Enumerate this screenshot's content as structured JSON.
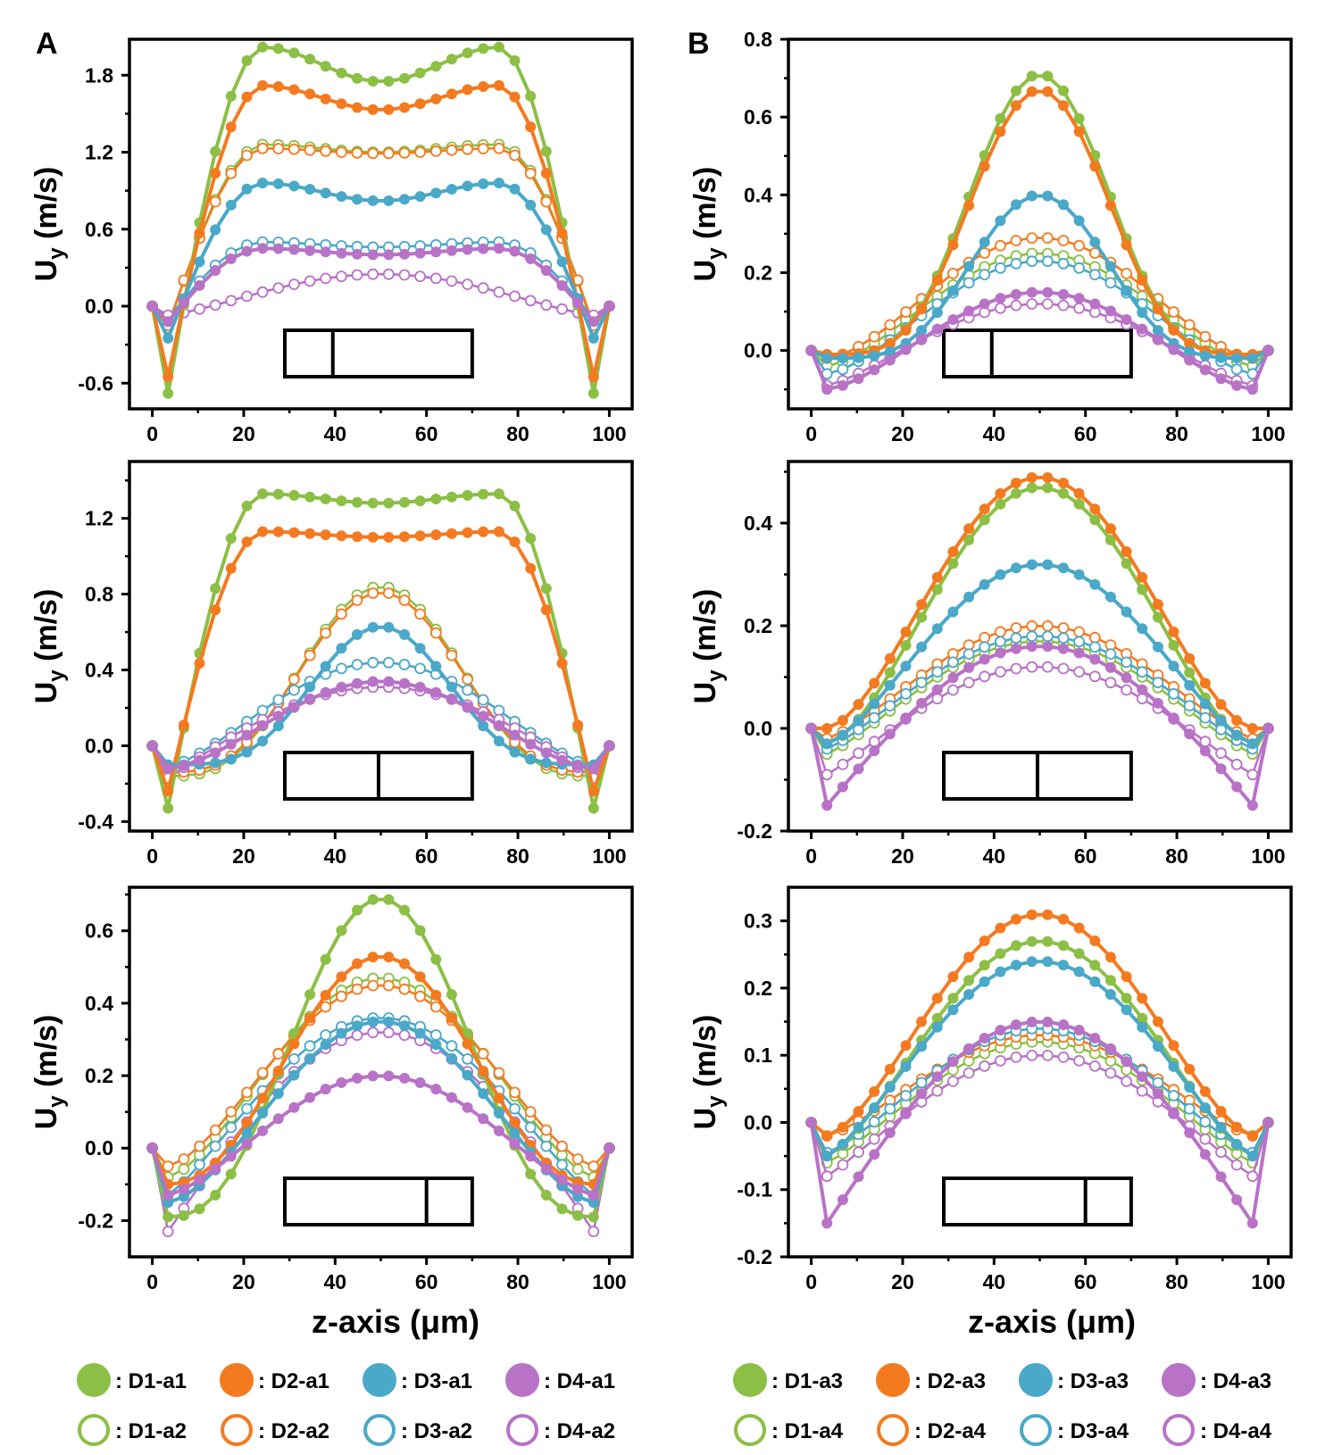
{
  "figure": {
    "panel_labels": [
      "A",
      "B"
    ],
    "xlabel": "z-axis (μm)",
    "ylabel_main": "U",
    "ylabel_sub": "y",
    "ylabel_unit": " (m/s)",
    "legend_sep": ": "
  },
  "colors": {
    "D1": "#8cbf45",
    "D2": "#f47a20",
    "D3": "#4aa8c8",
    "D4": "#b872c6"
  },
  "legends": {
    "A": [
      {
        "label": "D1-a1",
        "color": "#8cbf45",
        "filled": true
      },
      {
        "label": "D2-a1",
        "color": "#f47a20",
        "filled": true
      },
      {
        "label": "D3-a1",
        "color": "#4aa8c8",
        "filled": true
      },
      {
        "label": "D4-a1",
        "color": "#b872c6",
        "filled": true
      },
      {
        "label": "D1-a2",
        "color": "#8cbf45",
        "filled": false
      },
      {
        "label": "D2-a2",
        "color": "#f47a20",
        "filled": false
      },
      {
        "label": "D3-a2",
        "color": "#4aa8c8",
        "filled": false
      },
      {
        "label": "D4-a2",
        "color": "#b872c6",
        "filled": false
      }
    ],
    "B": [
      {
        "label": "D1-a3",
        "color": "#8cbf45",
        "filled": true
      },
      {
        "label": "D2-a3",
        "color": "#f47a20",
        "filled": true
      },
      {
        "label": "D3-a3",
        "color": "#4aa8c8",
        "filled": true
      },
      {
        "label": "D4-a3",
        "color": "#b872c6",
        "filled": true
      },
      {
        "label": "D1-a4",
        "color": "#8cbf45",
        "filled": false
      },
      {
        "label": "D2-a4",
        "color": "#f47a20",
        "filled": false
      },
      {
        "label": "D3-a4",
        "color": "#4aa8c8",
        "filled": false
      },
      {
        "label": "D4-a4",
        "color": "#b872c6",
        "filled": false
      }
    ]
  },
  "chart_data": [
    {
      "type": "line",
      "id": "A-top",
      "panel": "A",
      "column": "A",
      "row": 0,
      "xlabel": "",
      "ylabel": "Uy (m/s)",
      "xlim": [
        -5,
        105
      ],
      "ylim": [
        -0.8,
        2.08
      ],
      "xticks": [
        0,
        20,
        40,
        60,
        80,
        100
      ],
      "yticks": [
        -0.6,
        0.0,
        0.6,
        1.2,
        1.8
      ],
      "ytick_labels": [
        "-0.6",
        "0.0",
        "0.6",
        "1.2",
        "1.8"
      ],
      "inset_box": {
        "x_start": 29,
        "x_end": 70,
        "divider_x": 39.5
      },
      "series": [
        {
          "name": "D1-a1",
          "color": "#8cbf45",
          "filled": true,
          "edge": -0.68,
          "flat": false,
          "plateau": 1.75,
          "peak": 2.02
        },
        {
          "name": "D2-a1",
          "color": "#f47a20",
          "filled": true,
          "edge": -0.55,
          "flat": false,
          "plateau": 1.53,
          "peak": 1.72
        },
        {
          "name": "D3-a1",
          "color": "#4aa8c8",
          "filled": true,
          "edge": -0.25,
          "flat": false,
          "plateau": 0.82,
          "peak": 0.96
        },
        {
          "name": "D4-a1",
          "color": "#b872c6",
          "filled": true,
          "edge": -0.12,
          "flat": false,
          "plateau": 0.4,
          "peak": 0.45
        },
        {
          "name": "D1-a2",
          "color": "#8cbf45",
          "filled": false,
          "edge": -0.17,
          "flat": false,
          "plateau": 1.2,
          "peak": 1.26
        },
        {
          "name": "D2-a2",
          "color": "#f47a20",
          "filled": false,
          "edge": -0.15,
          "flat": false,
          "plateau": 1.19,
          "peak": 1.23
        },
        {
          "name": "D3-a2",
          "color": "#4aa8c8",
          "filled": false,
          "edge": -0.1,
          "flat": false,
          "plateau": 0.46,
          "peak": 0.5
        },
        {
          "name": "D4-a2",
          "color": "#b872c6",
          "filled": false,
          "edge": -0.07,
          "flat": true,
          "peak": 0.25,
          "pow": 1.3
        }
      ]
    },
    {
      "type": "line",
      "id": "A-mid",
      "panel": "A",
      "column": "A",
      "row": 1,
      "xlabel": "",
      "ylabel": "Uy (m/s)",
      "xlim": [
        -5,
        105
      ],
      "ylim": [
        -0.45,
        1.5
      ],
      "xticks": [
        0,
        20,
        40,
        60,
        80,
        100
      ],
      "yticks": [
        -0.4,
        0.0,
        0.4,
        0.8,
        1.2
      ],
      "ytick_labels": [
        "-0.4",
        "0.0",
        "0.4",
        "0.8",
        "1.2"
      ],
      "inset_box": {
        "x_start": 29,
        "x_end": 70,
        "divider_x": 49.5
      },
      "series": [
        {
          "name": "D1-a1",
          "color": "#8cbf45",
          "filled": true,
          "edge": -0.33,
          "flat": false,
          "plateau": 1.28,
          "peak": 1.33
        },
        {
          "name": "D2-a1",
          "color": "#f47a20",
          "filled": true,
          "edge": -0.24,
          "flat": false,
          "plateau": 1.1,
          "peak": 1.13
        },
        {
          "name": "D3-a1",
          "color": "#4aa8c8",
          "filled": true,
          "edge": -0.1,
          "flat": true,
          "peak": 0.63,
          "pow": 4
        },
        {
          "name": "D4-a1",
          "color": "#b872c6",
          "filled": true,
          "edge": -0.12,
          "flat": true,
          "peak": 0.34,
          "pow": 1.6
        },
        {
          "name": "D1-a2",
          "color": "#8cbf45",
          "filled": false,
          "edge": -0.16,
          "flat": true,
          "peak": 0.84,
          "pow": 3
        },
        {
          "name": "D2-a2",
          "color": "#f47a20",
          "filled": false,
          "edge": -0.14,
          "flat": true,
          "peak": 0.81,
          "pow": 3
        },
        {
          "name": "D3-a2",
          "color": "#4aa8c8",
          "filled": false,
          "edge": -0.11,
          "flat": true,
          "peak": 0.44,
          "pow": 1.4
        },
        {
          "name": "D4-a2",
          "color": "#b872c6",
          "filled": false,
          "edge": -0.17,
          "flat": true,
          "peak": 0.31,
          "pow": 1.0
        }
      ]
    },
    {
      "type": "line",
      "id": "A-bot",
      "panel": "A",
      "column": "A",
      "row": 2,
      "xlabel": "z-axis (μm)",
      "ylabel": "Uy (m/s)",
      "xlim": [
        -5,
        105
      ],
      "ylim": [
        -0.3,
        0.72
      ],
      "xticks": [
        0,
        20,
        40,
        60,
        80,
        100
      ],
      "yticks": [
        -0.2,
        0.0,
        0.2,
        0.4,
        0.6
      ],
      "ytick_labels": [
        "-0.2",
        "0.0",
        "0.2",
        "0.4",
        "0.6"
      ],
      "inset_box": {
        "x_start": 29,
        "x_end": 70,
        "divider_x": 60
      },
      "series": [
        {
          "name": "D1-a1",
          "color": "#8cbf45",
          "filled": true,
          "edge": -0.19,
          "flat": true,
          "peak": 0.69,
          "pow": 2.5
        },
        {
          "name": "D2-a1",
          "color": "#f47a20",
          "filled": true,
          "edge": -0.1,
          "flat": true,
          "peak": 0.53,
          "pow": 2.2
        },
        {
          "name": "D3-a1",
          "color": "#4aa8c8",
          "filled": true,
          "edge": -0.15,
          "flat": true,
          "peak": 0.35,
          "pow": 1.6
        },
        {
          "name": "D4-a1",
          "color": "#b872c6",
          "filled": true,
          "edge": -0.13,
          "flat": true,
          "peak": 0.2,
          "pow": 1.4
        },
        {
          "name": "D1-a2",
          "color": "#8cbf45",
          "filled": false,
          "edge": -0.08,
          "flat": true,
          "peak": 0.47,
          "pow": 1.5
        },
        {
          "name": "D2-a2",
          "color": "#f47a20",
          "filled": false,
          "edge": -0.05,
          "flat": true,
          "peak": 0.45,
          "pow": 1.5
        },
        {
          "name": "D3-a2",
          "color": "#4aa8c8",
          "filled": false,
          "edge": -0.13,
          "flat": true,
          "peak": 0.36,
          "pow": 1.2
        },
        {
          "name": "D4-a2",
          "color": "#b872c6",
          "filled": false,
          "edge": -0.23,
          "flat": true,
          "peak": 0.32,
          "pow": 1.0
        }
      ]
    },
    {
      "type": "line",
      "id": "B-top",
      "panel": "B",
      "column": "B",
      "row": 0,
      "xlabel": "",
      "ylabel": "Uy (m/s)",
      "xlim": [
        -5,
        105
      ],
      "ylim": [
        -0.15,
        0.8
      ],
      "xticks": [
        0,
        20,
        40,
        60,
        80,
        100
      ],
      "yticks": [
        0.0,
        0.2,
        0.4,
        0.6,
        0.8
      ],
      "ytick_labels": [
        "0.0",
        "0.2",
        "0.4",
        "0.6",
        "0.8"
      ],
      "inset_box": {
        "x_start": 29,
        "x_end": 70,
        "divider_x": 39.5
      },
      "series": [
        {
          "name": "D1-a3",
          "color": "#8cbf45",
          "filled": true,
          "edge": -0.01,
          "flat": true,
          "peak": 0.71,
          "pow": 4
        },
        {
          "name": "D2-a3",
          "color": "#f47a20",
          "filled": true,
          "edge": -0.01,
          "flat": true,
          "peak": 0.67,
          "pow": 4
        },
        {
          "name": "D3-a3",
          "color": "#4aa8c8",
          "filled": true,
          "edge": -0.02,
          "flat": true,
          "peak": 0.4,
          "pow": 4
        },
        {
          "name": "D4-a3",
          "color": "#b872c6",
          "filled": true,
          "edge": -0.1,
          "flat": true,
          "peak": 0.15,
          "pow": 1.5
        },
        {
          "name": "D1-a4",
          "color": "#8cbf45",
          "filled": false,
          "edge": -0.04,
          "flat": true,
          "peak": 0.25,
          "pow": 1.5
        },
        {
          "name": "D2-a4",
          "color": "#f47a20",
          "filled": false,
          "edge": -0.02,
          "flat": true,
          "peak": 0.29,
          "pow": 1.6
        },
        {
          "name": "D3-a4",
          "color": "#4aa8c8",
          "filled": false,
          "edge": -0.06,
          "flat": true,
          "peak": 0.23,
          "pow": 1.5
        },
        {
          "name": "D4-a4",
          "color": "#b872c6",
          "filled": false,
          "edge": -0.09,
          "flat": true,
          "peak": 0.12,
          "pow": 1.3
        }
      ]
    },
    {
      "type": "line",
      "id": "B-mid",
      "panel": "B",
      "column": "B",
      "row": 1,
      "xlabel": "",
      "ylabel": "Uy (m/s)",
      "xlim": [
        -5,
        105
      ],
      "ylim": [
        -0.2,
        0.52
      ],
      "xticks": [
        0,
        20,
        40,
        60,
        80,
        100
      ],
      "yticks": [
        -0.2,
        0.0,
        0.2,
        0.4
      ],
      "ytick_labels": [
        "-0.2",
        "0.0",
        "0.2",
        "0.4"
      ],
      "inset_box": {
        "x_start": 29,
        "x_end": 70,
        "divider_x": 49.5
      },
      "series": [
        {
          "name": "D1-a3",
          "color": "#8cbf45",
          "filled": true,
          "edge": -0.03,
          "flat": true,
          "peak": 0.47,
          "pow": 1.6
        },
        {
          "name": "D2-a3",
          "color": "#f47a20",
          "filled": true,
          "edge": 0.0,
          "flat": true,
          "peak": 0.49,
          "pow": 1.6
        },
        {
          "name": "D3-a3",
          "color": "#4aa8c8",
          "filled": true,
          "edge": -0.03,
          "flat": true,
          "peak": 0.32,
          "pow": 1.4
        },
        {
          "name": "D4-a3",
          "color": "#b872c6",
          "filled": true,
          "edge": -0.15,
          "flat": true,
          "peak": 0.16,
          "pow": 1.0
        },
        {
          "name": "D1-a4",
          "color": "#8cbf45",
          "filled": false,
          "edge": -0.05,
          "flat": true,
          "peak": 0.17,
          "pow": 1.2
        },
        {
          "name": "D2-a4",
          "color": "#f47a20",
          "filled": false,
          "edge": -0.02,
          "flat": true,
          "peak": 0.2,
          "pow": 1.3
        },
        {
          "name": "D3-a4",
          "color": "#4aa8c8",
          "filled": false,
          "edge": -0.04,
          "flat": true,
          "peak": 0.18,
          "pow": 1.2
        },
        {
          "name": "D4-a4",
          "color": "#b872c6",
          "filled": false,
          "edge": -0.09,
          "flat": true,
          "peak": 0.12,
          "pow": 1.1
        }
      ]
    },
    {
      "type": "line",
      "id": "B-bot",
      "panel": "B",
      "column": "B",
      "row": 2,
      "xlabel": "z-axis (μm)",
      "ylabel": "Uy (m/s)",
      "xlim": [
        -5,
        105
      ],
      "ylim": [
        -0.2,
        0.35
      ],
      "xticks": [
        0,
        20,
        40,
        60,
        80,
        100
      ],
      "yticks": [
        -0.2,
        -0.1,
        0.0,
        0.1,
        0.2,
        0.3
      ],
      "ytick_labels": [
        "-0.2",
        "-0.1",
        "0.0",
        "0.1",
        "0.2",
        "0.3"
      ],
      "inset_box": {
        "x_start": 29,
        "x_end": 70,
        "divider_x": 60
      },
      "series": [
        {
          "name": "D1-a3",
          "color": "#8cbf45",
          "filled": true,
          "edge": -0.05,
          "flat": true,
          "peak": 0.27,
          "pow": 1.4
        },
        {
          "name": "D2-a3",
          "color": "#f47a20",
          "filled": true,
          "edge": -0.02,
          "flat": true,
          "peak": 0.31,
          "pow": 1.5
        },
        {
          "name": "D3-a3",
          "color": "#4aa8c8",
          "filled": true,
          "edge": -0.05,
          "flat": true,
          "peak": 0.24,
          "pow": 1.3
        },
        {
          "name": "D4-a3",
          "color": "#b872c6",
          "filled": true,
          "edge": -0.15,
          "flat": true,
          "peak": 0.15,
          "pow": 1.0
        },
        {
          "name": "D1-a4",
          "color": "#8cbf45",
          "filled": false,
          "edge": -0.06,
          "flat": true,
          "peak": 0.12,
          "pow": 1.2
        },
        {
          "name": "D2-a4",
          "color": "#f47a20",
          "filled": false,
          "edge": -0.02,
          "flat": true,
          "peak": 0.13,
          "pow": 1.3
        },
        {
          "name": "D3-a4",
          "color": "#4aa8c8",
          "filled": false,
          "edge": -0.045,
          "flat": true,
          "peak": 0.14,
          "pow": 1.3
        },
        {
          "name": "D4-a4",
          "color": "#b872c6",
          "filled": false,
          "edge": -0.08,
          "flat": true,
          "peak": 0.1,
          "pow": 1.1
        }
      ]
    }
  ]
}
